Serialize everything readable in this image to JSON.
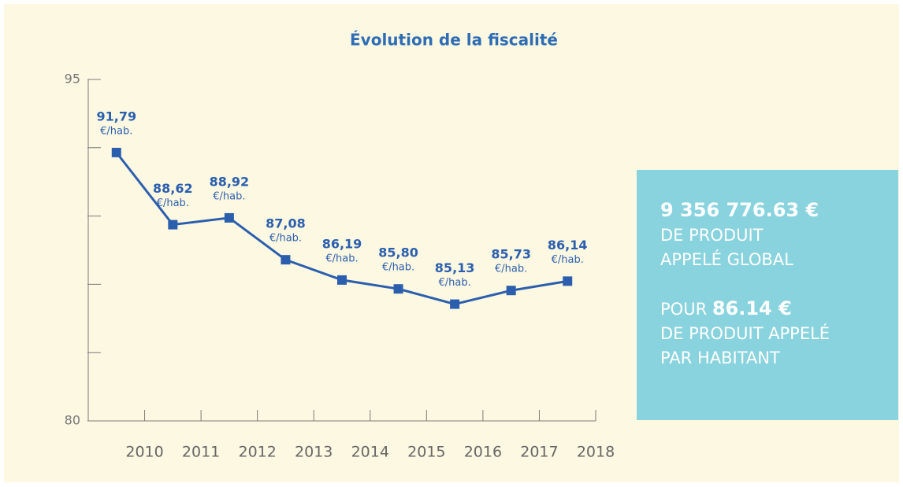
{
  "chart_data": {
    "type": "line",
    "title": "Évolution de la fiscalité",
    "categories": [
      "2010",
      "2011",
      "2012",
      "2013",
      "2014",
      "2015",
      "2016",
      "2017",
      "2018"
    ],
    "series": [
      {
        "color": "#2b5fae",
        "values": [
          91.79,
          88.62,
          88.92,
          87.08,
          86.19,
          85.8,
          85.13,
          85.73,
          86.14
        ],
        "value_labels": [
          "91,79",
          "88,62",
          "88,92",
          "87,08",
          "86,19",
          "85,80",
          "85,13",
          "85,73",
          "86,14"
        ]
      }
    ],
    "unit_label": "€/hab.",
    "ylim": [
      80,
      95
    ],
    "yticks": [
      80,
      95
    ],
    "y_minor_ticks": [
      83,
      86,
      89,
      92
    ]
  },
  "info": {
    "total": "9 356 776.63 €",
    "total_lines": [
      "DE PRODUIT",
      "APPELÉ GLOBAL"
    ],
    "per_prefix": "POUR",
    "per_value": "86.14 €",
    "per_lines": [
      "DE PRODUIT APPELÉ",
      "PAR HABITANT"
    ]
  }
}
